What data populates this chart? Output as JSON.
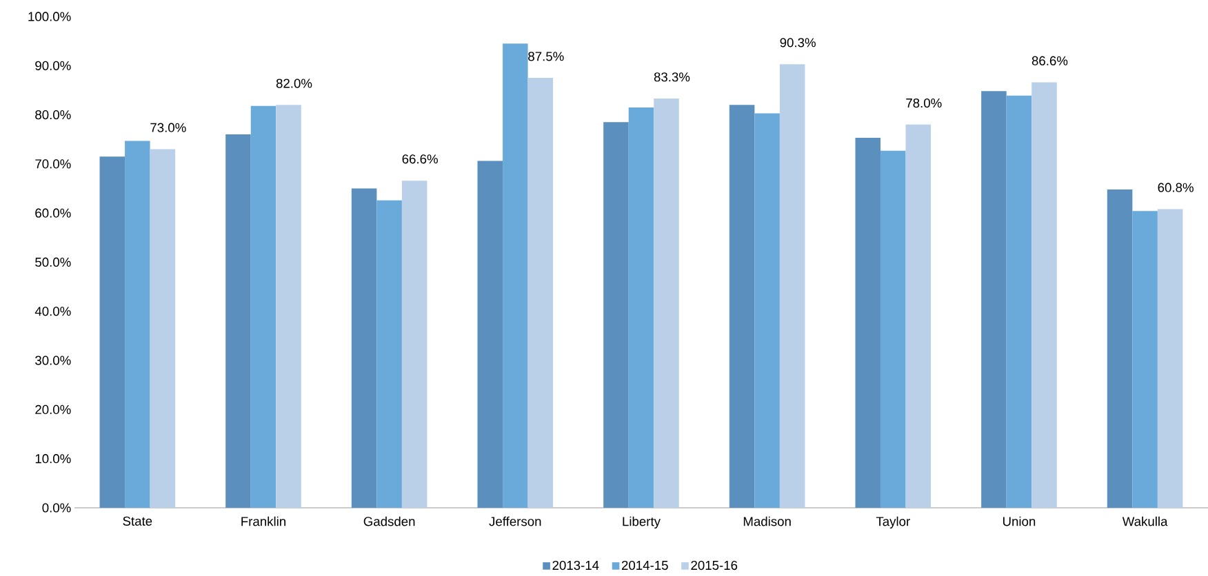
{
  "chart_data": {
    "type": "bar",
    "categories": [
      "State",
      "Franklin",
      "Gadsden",
      "Jefferson",
      "Liberty",
      "Madison",
      "Taylor",
      "Union",
      "Wakulla"
    ],
    "series": [
      {
        "name": "2013-14",
        "color": "#5b8fbd",
        "values": [
          71.5,
          76.0,
          65.0,
          70.6,
          78.5,
          82.0,
          75.3,
          84.8,
          64.8
        ]
      },
      {
        "name": "2014-15",
        "color": "#6aaadb",
        "values": [
          74.7,
          81.8,
          62.6,
          94.5,
          81.5,
          80.3,
          72.7,
          83.9,
          60.4
        ]
      },
      {
        "name": "2015-16",
        "color": "#bad0e8",
        "values": [
          73.0,
          82.0,
          66.6,
          87.5,
          83.3,
          90.3,
          78.0,
          86.6,
          60.8
        ],
        "value_labels": [
          "73.0%",
          "82.0%",
          "66.6%",
          "87.5%",
          "83.3%",
          "90.3%",
          "78.0%",
          "86.6%",
          "60.8%"
        ]
      }
    ],
    "ylim": [
      0,
      100
    ],
    "yticks": [
      {
        "value": 0,
        "label": "0.0%"
      },
      {
        "value": 10,
        "label": "10.0%"
      },
      {
        "value": 20,
        "label": "20.0%"
      },
      {
        "value": 30,
        "label": "30.0%"
      },
      {
        "value": 40,
        "label": "40.0%"
      },
      {
        "value": 50,
        "label": "50.0%"
      },
      {
        "value": 60,
        "label": "60.0%"
      },
      {
        "value": 70,
        "label": "70.0%"
      },
      {
        "value": 80,
        "label": "80.0%"
      },
      {
        "value": 90,
        "label": "90.0%"
      },
      {
        "value": 100,
        "label": "100.0%"
      }
    ],
    "legend": "bottom"
  }
}
